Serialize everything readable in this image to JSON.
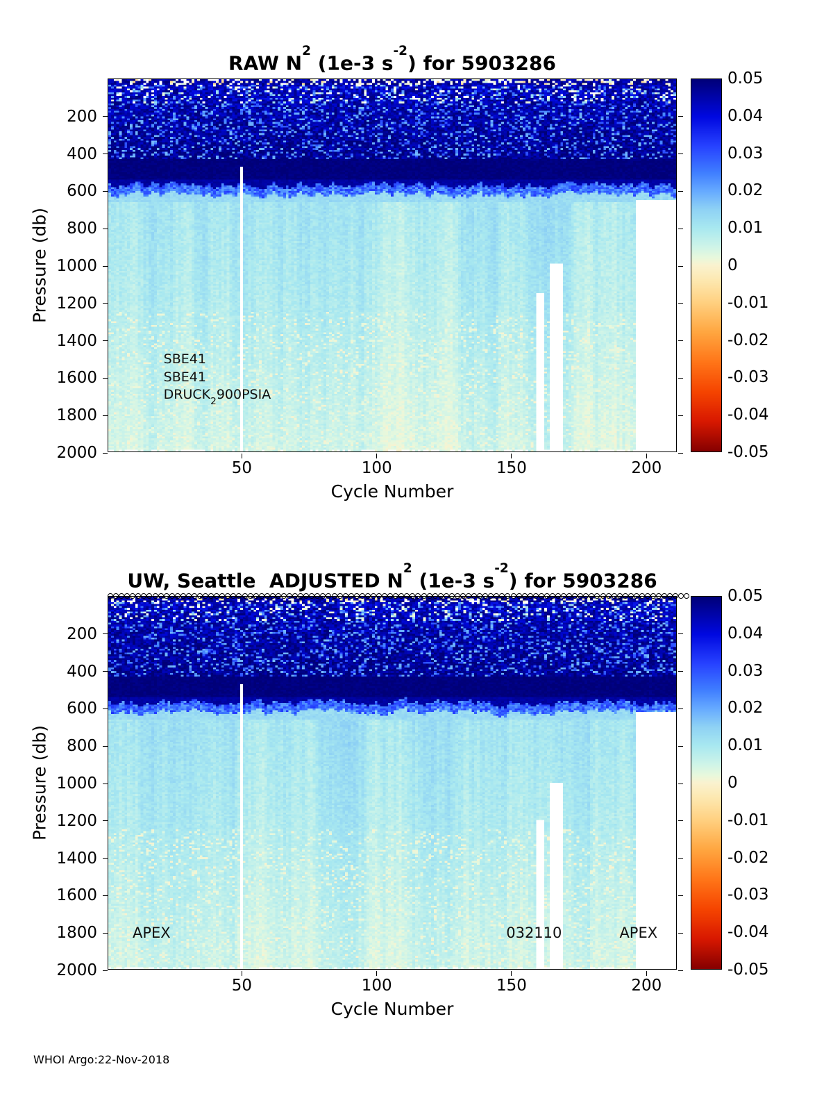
{
  "meta": {
    "footer": "WHOI Argo:22-Nov-2018"
  },
  "colorbar": {
    "vmax": 0.05,
    "vmin": -0.05,
    "tick_labels": [
      "0.05",
      "0.04",
      "0.03",
      "0.02",
      "0.01",
      "0",
      "-0.01",
      "-0.02",
      "-0.03",
      "-0.04",
      "-0.05"
    ],
    "stops": [
      {
        "v": 0.05,
        "c": "#000078"
      },
      {
        "v": 0.04,
        "c": "#0008e0"
      },
      {
        "v": 0.032,
        "c": "#2742ff"
      },
      {
        "v": 0.025,
        "c": "#3f7dff"
      },
      {
        "v": 0.02,
        "c": "#66aaff"
      },
      {
        "v": 0.015,
        "c": "#8fd2f4"
      },
      {
        "v": 0.01,
        "c": "#a8e8f0"
      },
      {
        "v": 0.005,
        "c": "#cef4e8"
      },
      {
        "v": 0.002,
        "c": "#e8f8dc"
      },
      {
        "v": 0.0,
        "c": "#faf2cf"
      },
      {
        "v": -0.004,
        "c": "#fde8b0"
      },
      {
        "v": -0.01,
        "c": "#ffd080"
      },
      {
        "v": -0.018,
        "c": "#ffa640"
      },
      {
        "v": -0.026,
        "c": "#ff7518"
      },
      {
        "v": -0.034,
        "c": "#f54400"
      },
      {
        "v": -0.042,
        "c": "#d81800"
      },
      {
        "v": -0.05,
        "c": "#860000"
      }
    ]
  },
  "chart_data": [
    {
      "type": "heatmap",
      "panel": "raw",
      "title_parts": [
        "RAW N",
        "2",
        " (1e-3 s",
        "-2",
        ") for 5903286"
      ],
      "xlabel": "Cycle Number",
      "ylabel": "Pressure (db)",
      "x_ticks": [
        50,
        100,
        150,
        200
      ],
      "y_ticks": [
        200,
        400,
        600,
        800,
        1000,
        1200,
        1400,
        1600,
        1800,
        2000
      ],
      "x_range": [
        1,
        211
      ],
      "y_range": [
        0,
        2000
      ],
      "annotations": [
        {
          "x": 21,
          "y": 1500,
          "parts": [
            {
              "t": "SBE41"
            }
          ]
        },
        {
          "x": 21,
          "y": 1600,
          "parts": [
            {
              "t": "SBE41"
            }
          ]
        },
        {
          "x": 21,
          "y": 1690,
          "parts": [
            {
              "t": "DRUCK"
            },
            {
              "t": "2",
              "sub": true
            },
            {
              "t": "900PSIA"
            }
          ]
        }
      ],
      "heatmap": {
        "seed": 20181122,
        "bottom_dropout": true,
        "bands": [
          {
            "p0": 0,
            "p1": 30,
            "base": [
              0.046,
              0.046
            ],
            "noise": 0.005,
            "speckle": {
              "prob": 0.32,
              "values": [
                0.0,
                0.001,
                -0.007,
                -0.002,
                0.004
              ],
              "col_mod": true,
              "white_prob": 0.45
            }
          },
          {
            "p0": 30,
            "p1": 130,
            "base": [
              0.043,
              0.045
            ],
            "noise": 0.006,
            "speckle": {
              "prob": 0.26,
              "values": [
                0.021,
                0.027,
                0.013,
                0.002
              ],
              "col_mod": true,
              "white_prob": 0.2
            }
          },
          {
            "p0": 130,
            "p1": 430,
            "base": [
              0.045,
              0.048
            ],
            "noise": 0.005,
            "speckle": {
              "prob": 0.2,
              "values": [
                0.024,
                0.03,
                0.019
              ]
            }
          },
          {
            "p0": 430,
            "p1": 545,
            "base": [
              0.0495,
              0.0495
            ],
            "noise": 0.0015
          },
          {
            "p0": 545,
            "p1": 665,
            "type": "transition",
            "thr_min": 580,
            "thr_max": 660,
            "dark": 0.046,
            "mid": [
              0.02,
              0.034
            ],
            "base": [
              0.013,
              0.012
            ]
          },
          {
            "p0": 665,
            "p1": 1250,
            "base": [
              0.0105,
              0.0085
            ],
            "noise": 0.002,
            "col_streak": 0.0032
          },
          {
            "p0": 1250,
            "p1": 2001,
            "base": [
              0.0085,
              0.0045
            ],
            "noise": 0.0018,
            "col_streak": 0.0028,
            "speckle": {
              "prob": 0.12,
              "values": [
                0.0015,
                0.001,
                0.0028
              ]
            }
          }
        ],
        "missing": [
          {
            "c0": 49.6,
            "c1": 50.4,
            "p0": 470,
            "p1": 2001
          },
          {
            "c0": 160,
            "c1": 162,
            "p0": 1150,
            "p1": 2001
          },
          {
            "c0": 165,
            "c1": 169,
            "p0": 990,
            "p1": 2001
          },
          {
            "c0": 197,
            "c1": 212,
            "p0": 655,
            "p1": 2001
          }
        ]
      }
    },
    {
      "type": "heatmap",
      "panel": "adjusted",
      "title_parts": [
        "UW, Seattle  ADJUSTED N",
        "2",
        " (1e-3 s",
        "-2",
        ") for 5903286"
      ],
      "xlabel": "Cycle Number",
      "ylabel": "Pressure (db)",
      "x_ticks": [
        50,
        100,
        150,
        200
      ],
      "y_ticks": [
        200,
        400,
        600,
        800,
        1000,
        1200,
        1400,
        1600,
        1800,
        2000
      ],
      "x_range": [
        1,
        211
      ],
      "y_range": [
        0,
        2000
      ],
      "annotations": [
        {
          "x": 9.5,
          "y": 1800,
          "parts": [
            {
              "t": "APEX"
            }
          ]
        },
        {
          "x": 148,
          "y": 1800,
          "parts": [
            {
              "t": "032110"
            }
          ]
        },
        {
          "x": 190,
          "y": 1800,
          "parts": [
            {
              "t": "APEX"
            }
          ]
        }
      ],
      "top_markers": {
        "symbol": "circle",
        "count": 104
      },
      "heatmap": {
        "seed": 7072,
        "bottom_dropout": true,
        "bands": [
          {
            "p0": 0,
            "p1": 30,
            "base": [
              0.046,
              0.046
            ],
            "noise": 0.005,
            "speckle": {
              "prob": 0.3,
              "values": [
                0.0,
                0.001,
                -0.006,
                -0.002,
                0.004
              ],
              "col_mod": true,
              "white_prob": 0.45
            }
          },
          {
            "p0": 30,
            "p1": 130,
            "base": [
              0.043,
              0.045
            ],
            "noise": 0.006,
            "speckle": {
              "prob": 0.26,
              "values": [
                0.021,
                0.027,
                0.013,
                0.002
              ],
              "col_mod": true,
              "white_prob": 0.2
            }
          },
          {
            "p0": 130,
            "p1": 430,
            "base": [
              0.045,
              0.048
            ],
            "noise": 0.005,
            "speckle": {
              "prob": 0.2,
              "values": [
                0.024,
                0.03,
                0.019
              ]
            }
          },
          {
            "p0": 430,
            "p1": 545,
            "base": [
              0.0495,
              0.0495
            ],
            "noise": 0.0015
          },
          {
            "p0": 545,
            "p1": 665,
            "type": "transition",
            "thr_min": 580,
            "thr_max": 660,
            "dark": 0.046,
            "mid": [
              0.02,
              0.034
            ],
            "base": [
              0.013,
              0.012
            ]
          },
          {
            "p0": 665,
            "p1": 1250,
            "base": [
              0.0105,
              0.0085
            ],
            "noise": 0.002,
            "col_streak": 0.0032
          },
          {
            "p0": 1250,
            "p1": 2001,
            "base": [
              0.0085,
              0.0045
            ],
            "noise": 0.0018,
            "col_streak": 0.0028,
            "speckle": {
              "prob": 0.12,
              "values": [
                0.0015,
                0.001,
                0.0028
              ]
            }
          }
        ],
        "missing": [
          {
            "c0": 49.6,
            "c1": 50.4,
            "p0": 470,
            "p1": 2001
          },
          {
            "c0": 160,
            "c1": 162,
            "p0": 1200,
            "p1": 2001
          },
          {
            "c0": 165,
            "c1": 169,
            "p0": 1000,
            "p1": 2001
          },
          {
            "c0": 197,
            "c1": 212,
            "p0": 620,
            "p1": 2001
          }
        ]
      }
    }
  ]
}
